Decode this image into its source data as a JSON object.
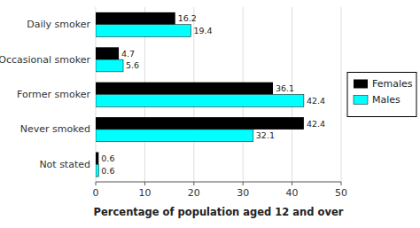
{
  "chart_data": {
    "type": "bar",
    "orientation": "horizontal",
    "categories": [
      "Not stated",
      "Never smoked",
      "Former smoker",
      "Occasional smoker",
      "Daily smoker"
    ],
    "series": [
      {
        "name": "Females",
        "color": "#000000",
        "values": [
          0.6,
          42.4,
          36.1,
          4.7,
          16.2
        ]
      },
      {
        "name": "Males",
        "color": "#00FFFF",
        "values": [
          0.6,
          32.1,
          42.4,
          5.6,
          19.4
        ]
      }
    ],
    "xlabel": "Percentage of population aged 12 and over",
    "xlim": [
      0,
      50
    ],
    "xticks": [
      0,
      10,
      20,
      30,
      40,
      50
    ],
    "grid": true,
    "data_labels": true,
    "legend": "right"
  }
}
